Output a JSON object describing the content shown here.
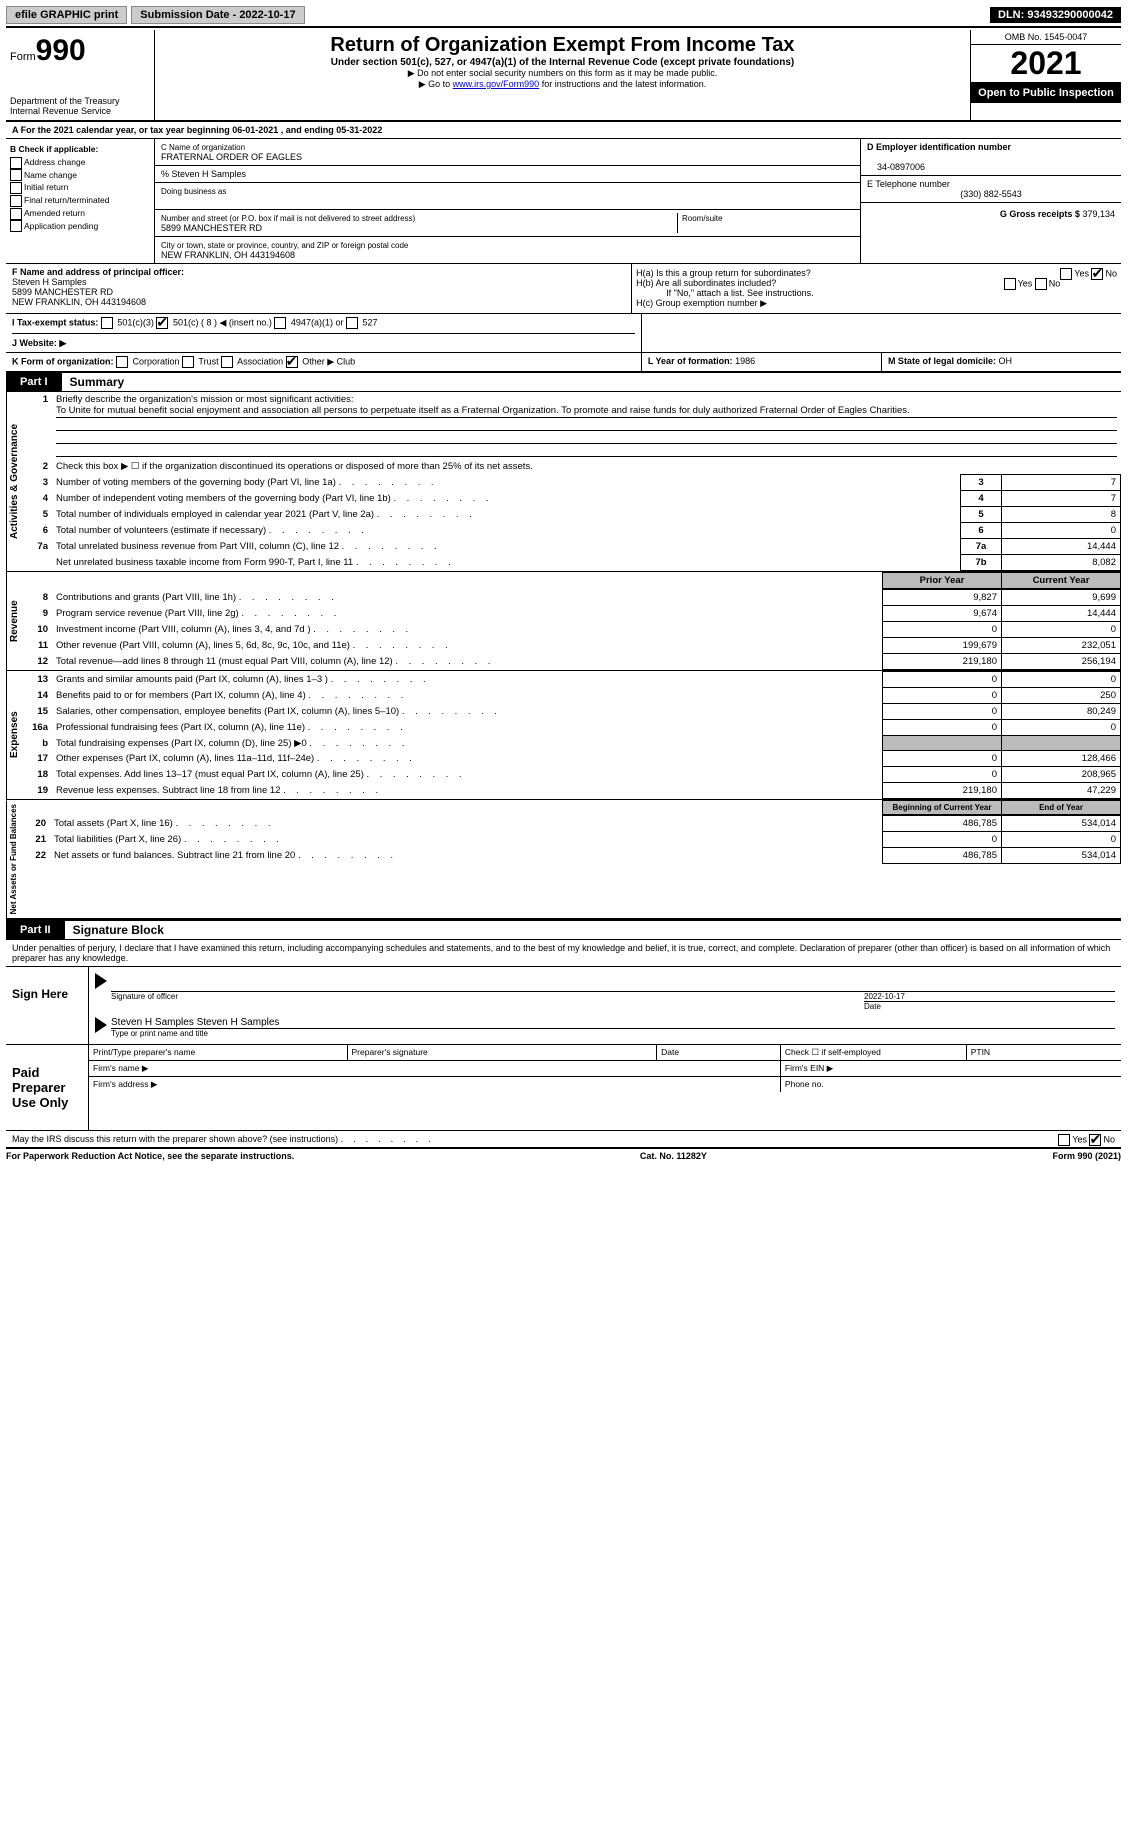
{
  "topbar": {
    "efile": "efile GRAPHIC print",
    "submission": "Submission Date - 2022-10-17",
    "dln": "DLN: 93493290000042"
  },
  "header": {
    "form": "Form",
    "formnum": "990",
    "dept": "Department of the Treasury Internal Revenue Service",
    "title": "Return of Organization Exempt From Income Tax",
    "sub": "Under section 501(c), 527, or 4947(a)(1) of the Internal Revenue Code (except private foundations)",
    "note1": "▶ Do not enter social security numbers on this form as it may be made public.",
    "note2_pre": "▶ Go to ",
    "note2_link": "www.irs.gov/Form990",
    "note2_post": " for instructions and the latest information.",
    "omb": "OMB No. 1545-0047",
    "year": "2021",
    "inspect": "Open to Public Inspection"
  },
  "A": {
    "line": "A For the 2021 calendar year, or tax year beginning 06-01-2021   , and ending 05-31-2022"
  },
  "B": {
    "label": "B Check if applicable:",
    "items": [
      "Address change",
      "Name change",
      "Initial return",
      "Final return/terminated",
      "Amended return",
      "Application pending"
    ]
  },
  "C": {
    "name_label": "C Name of organization",
    "name": "FRATERNAL ORDER OF EAGLES",
    "care": "% Steven H Samples",
    "dba_label": "Doing business as",
    "addr_label": "Number and street (or P.O. box if mail is not delivered to street address)",
    "room_label": "Room/suite",
    "addr": "5899 MANCHESTER RD",
    "city_label": "City or town, state or province, country, and ZIP or foreign postal code",
    "city": "NEW FRANKLIN, OH   443194608"
  },
  "D": {
    "label": "D Employer identification number",
    "val": "34-0897006"
  },
  "E": {
    "label": "E Telephone number",
    "val": "(330) 882-5543"
  },
  "G": {
    "label": "G Gross receipts $",
    "val": "379,134"
  },
  "F": {
    "label": "F Name and address of principal officer:",
    "name": "Steven H Samples",
    "addr1": "5899 MANCHESTER RD",
    "addr2": "NEW FRANKLIN, OH   443194608"
  },
  "H": {
    "a": "H(a)  Is this a group return for subordinates?",
    "b": "H(b)  Are all subordinates included?",
    "b_note": "If \"No,\" attach a list. See instructions.",
    "c": "H(c)  Group exemption number ▶",
    "yes": "Yes",
    "no": "No"
  },
  "I": {
    "label": "I  Tax-exempt status:",
    "opts": [
      "501(c)(3)",
      "501(c) ( 8 ) ◀ (insert no.)",
      "4947(a)(1) or",
      "527"
    ]
  },
  "J": {
    "label": "J  Website: ▶"
  },
  "K": {
    "label": "K Form of organization:",
    "opts": [
      "Corporation",
      "Trust",
      "Association",
      "Other ▶"
    ],
    "other": "Club"
  },
  "L": {
    "label": "L Year of formation:",
    "val": "1986"
  },
  "M": {
    "label": "M State of legal domicile:",
    "val": "OH"
  },
  "part1": {
    "tab": "Part I",
    "title": "Summary"
  },
  "summary": {
    "q1": "Briefly describe the organization's mission or most significant activities:",
    "mission": "To Unite for mutual benefit social enjoyment and association all persons to perpetuate itself as a Fraternal Organization. To promote and raise funds for duly authorized Fraternal Order of Eagles Charities.",
    "q2": "Check this box ▶ ☐  if the organization discontinued its operations or disposed of more than 25% of its net assets.",
    "rows_ag": [
      {
        "n": "3",
        "d": "Number of voting members of the governing body (Part VI, line 1a)",
        "box": "3",
        "v": "7"
      },
      {
        "n": "4",
        "d": "Number of independent voting members of the governing body (Part VI, line 1b)",
        "box": "4",
        "v": "7"
      },
      {
        "n": "5",
        "d": "Total number of individuals employed in calendar year 2021 (Part V, line 2a)",
        "box": "5",
        "v": "8"
      },
      {
        "n": "6",
        "d": "Total number of volunteers (estimate if necessary)",
        "box": "6",
        "v": "0"
      },
      {
        "n": "7a",
        "d": "Total unrelated business revenue from Part VIII, column (C), line 12",
        "box": "7a",
        "v": "14,444"
      },
      {
        "n": "",
        "d": "Net unrelated business taxable income from Form 990-T, Part I, line 11",
        "box": "7b",
        "v": "8,082"
      }
    ],
    "col_py": "Prior Year",
    "col_cy": "Current Year",
    "rows_rev": [
      {
        "n": "8",
        "d": "Contributions and grants (Part VIII, line 1h)",
        "py": "9,827",
        "cy": "9,699"
      },
      {
        "n": "9",
        "d": "Program service revenue (Part VIII, line 2g)",
        "py": "9,674",
        "cy": "14,444"
      },
      {
        "n": "10",
        "d": "Investment income (Part VIII, column (A), lines 3, 4, and 7d )",
        "py": "0",
        "cy": "0"
      },
      {
        "n": "11",
        "d": "Other revenue (Part VIII, column (A), lines 5, 6d, 8c, 9c, 10c, and 11e)",
        "py": "199,679",
        "cy": "232,051"
      },
      {
        "n": "12",
        "d": "Total revenue—add lines 8 through 11 (must equal Part VIII, column (A), line 12)",
        "py": "219,180",
        "cy": "256,194"
      }
    ],
    "rows_exp": [
      {
        "n": "13",
        "d": "Grants and similar amounts paid (Part IX, column (A), lines 1–3 )",
        "py": "0",
        "cy": "0"
      },
      {
        "n": "14",
        "d": "Benefits paid to or for members (Part IX, column (A), line 4)",
        "py": "0",
        "cy": "250"
      },
      {
        "n": "15",
        "d": "Salaries, other compensation, employee benefits (Part IX, column (A), lines 5–10)",
        "py": "0",
        "cy": "80,249"
      },
      {
        "n": "16a",
        "d": "Professional fundraising fees (Part IX, column (A), line 11e)",
        "py": "0",
        "cy": "0"
      },
      {
        "n": "b",
        "d": "Total fundraising expenses (Part IX, column (D), line 25) ▶0",
        "py": "grey",
        "cy": "grey"
      },
      {
        "n": "17",
        "d": "Other expenses (Part IX, column (A), lines 11a–11d, 11f–24e)",
        "py": "0",
        "cy": "128,466"
      },
      {
        "n": "18",
        "d": "Total expenses. Add lines 13–17 (must equal Part IX, column (A), line 25)",
        "py": "0",
        "cy": "208,965"
      },
      {
        "n": "19",
        "d": "Revenue less expenses. Subtract line 18 from line 12",
        "py": "219,180",
        "cy": "47,229"
      }
    ],
    "col_bcy": "Beginning of Current Year",
    "col_eoy": "End of Year",
    "rows_na": [
      {
        "n": "20",
        "d": "Total assets (Part X, line 16)",
        "py": "486,785",
        "cy": "534,014"
      },
      {
        "n": "21",
        "d": "Total liabilities (Part X, line 26)",
        "py": "0",
        "cy": "0"
      },
      {
        "n": "22",
        "d": "Net assets or fund balances. Subtract line 21 from line 20",
        "py": "486,785",
        "cy": "534,014"
      }
    ],
    "vlabels": {
      "ag": "Activities & Governance",
      "rev": "Revenue",
      "exp": "Expenses",
      "na": "Net Assets or Fund Balances"
    }
  },
  "part2": {
    "tab": "Part II",
    "title": "Signature Block"
  },
  "sig": {
    "perjury": "Under penalties of perjury, I declare that I have examined this return, including accompanying schedules and statements, and to the best of my knowledge and belief, it is true, correct, and complete. Declaration of preparer (other than officer) is based on all information of which preparer has any knowledge.",
    "sign_here": "Sign Here",
    "sig_officer": "Signature of officer",
    "date": "Date",
    "date_val": "2022-10-17",
    "typed": "Steven H Samples  Steven H Samples",
    "typed_label": "Type or print name and title",
    "paid": "Paid Preparer Use Only",
    "pname": "Print/Type preparer's name",
    "psig": "Preparer's signature",
    "pdate": "Date",
    "pself": "Check ☐ if self-employed",
    "ptin": "PTIN",
    "firmname": "Firm's name   ▶",
    "firmein": "Firm's EIN ▶",
    "firmaddr": "Firm's address ▶",
    "phone": "Phone no.",
    "may": "May the IRS discuss this return with the preparer shown above? (see instructions)"
  },
  "footer": {
    "left": "For Paperwork Reduction Act Notice, see the separate instructions.",
    "mid": "Cat. No. 11282Y",
    "right": "Form 990 (2021)"
  }
}
